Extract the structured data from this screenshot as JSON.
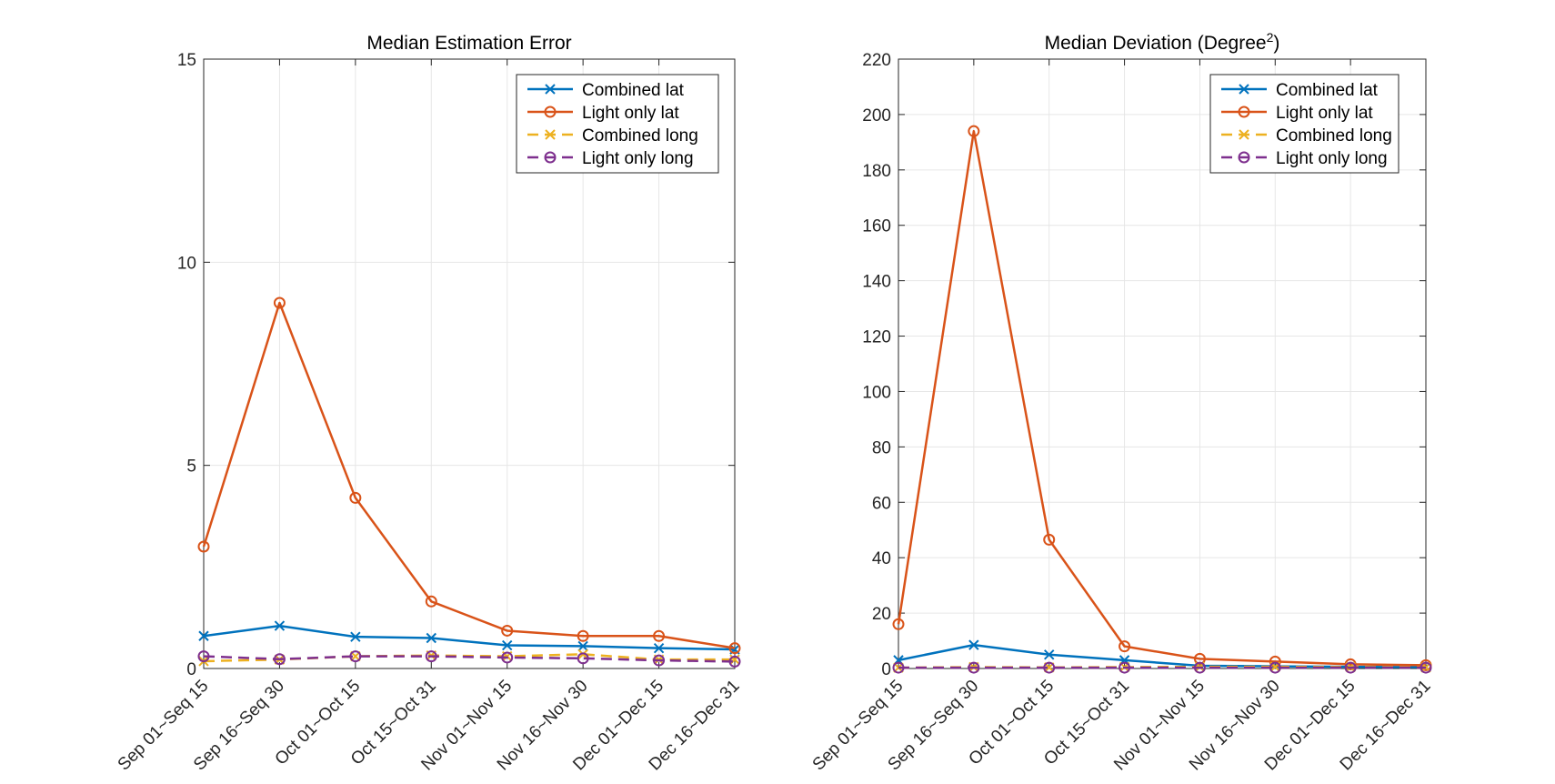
{
  "chart_data": [
    {
      "type": "line",
      "title": "Median Estimation Error",
      "title_superscript": "",
      "xlabel": "",
      "ylabel": "",
      "categories": [
        "Sep 01~Seq 15",
        "Sep 16~Seq 30",
        "Oct 01~Oct 15",
        "Oct 15~Oct 31",
        "Nov 01~Nov 15",
        "Nov 16~Nov 30",
        "Dec 01~Dec 15",
        "Dec 16~Dec 31"
      ],
      "ylim": [
        0,
        15
      ],
      "yticks": [
        0,
        5,
        10,
        15
      ],
      "grid": true,
      "legend_position": "top-right",
      "series": [
        {
          "name": "Combined lat",
          "color": "#0072BD",
          "marker": "x",
          "dashed": false,
          "values": [
            0.8,
            1.05,
            0.78,
            0.75,
            0.57,
            0.55,
            0.5,
            0.47
          ]
        },
        {
          "name": "Light only lat",
          "color": "#D95319",
          "marker": "o",
          "dashed": false,
          "values": [
            3.0,
            9.0,
            4.2,
            1.65,
            0.93,
            0.8,
            0.8,
            0.5
          ]
        },
        {
          "name": "Combined long",
          "color": "#EDB120",
          "marker": "x",
          "dashed": true,
          "values": [
            0.18,
            0.22,
            0.3,
            0.32,
            0.3,
            0.35,
            0.22,
            0.22
          ]
        },
        {
          "name": "Light only long",
          "color": "#7E2F8E",
          "marker": "o",
          "dashed": true,
          "values": [
            0.3,
            0.23,
            0.3,
            0.3,
            0.27,
            0.25,
            0.2,
            0.17
          ]
        }
      ]
    },
    {
      "type": "line",
      "title": "Median Deviation (Degree",
      "title_superscript": "2",
      "title_suffix": ")",
      "xlabel": "",
      "ylabel": "",
      "categories": [
        "Sep 01~Seq 15",
        "Sep 16~Seq 30",
        "Oct 01~Oct 15",
        "Oct 15~Oct 31",
        "Nov 01~Nov 15",
        "Nov 16~Nov 30",
        "Dec 01~Dec 15",
        "Dec 16~Dec 31"
      ],
      "ylim": [
        0,
        220
      ],
      "yticks": [
        0,
        20,
        40,
        60,
        80,
        100,
        120,
        140,
        160,
        180,
        200,
        220
      ],
      "grid": true,
      "legend_position": "top-right",
      "series": [
        {
          "name": "Combined lat",
          "color": "#0072BD",
          "marker": "x",
          "dashed": false,
          "values": [
            3,
            8.5,
            5,
            3,
            1,
            0.8,
            0.6,
            0.5
          ]
        },
        {
          "name": "Light only lat",
          "color": "#D95319",
          "marker": "o",
          "dashed": false,
          "values": [
            16,
            194,
            46.5,
            8,
            3.5,
            2.5,
            1.5,
            1.2
          ]
        },
        {
          "name": "Combined long",
          "color": "#EDB120",
          "marker": "x",
          "dashed": true,
          "values": [
            0.3,
            0.5,
            0.4,
            0.5,
            0.6,
            0.6,
            0.5,
            0.4
          ]
        },
        {
          "name": "Light only long",
          "color": "#7E2F8E",
          "marker": "o",
          "dashed": true,
          "values": [
            0.3,
            0.3,
            0.3,
            0.3,
            0.3,
            0.3,
            0.3,
            0.3
          ]
        }
      ]
    }
  ]
}
